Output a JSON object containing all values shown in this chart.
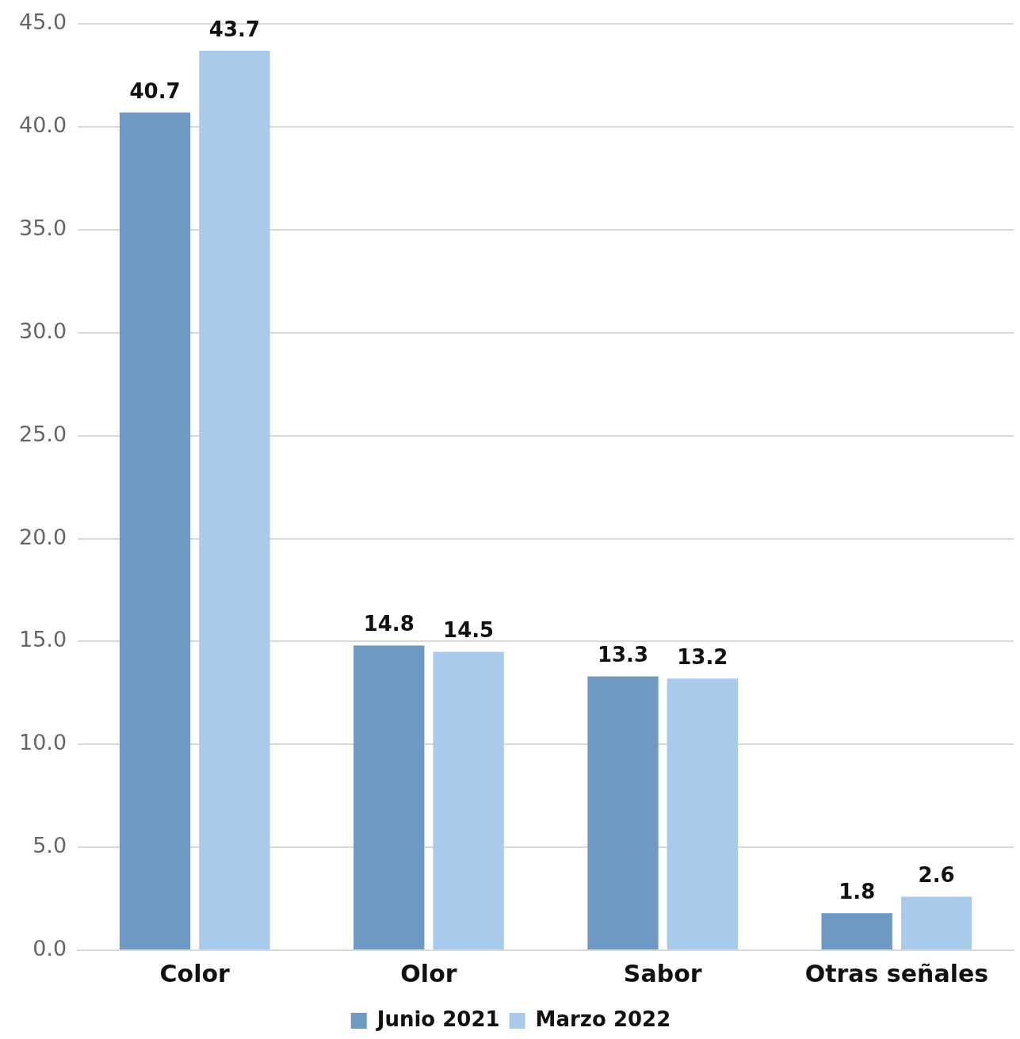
{
  "chart_data": {
    "type": "bar",
    "categories": [
      "Color",
      "Olor",
      "Sabor",
      "Otras señales"
    ],
    "series": [
      {
        "name": "Junio 2021",
        "color": "#6e99c2",
        "values": [
          40.7,
          14.8,
          13.3,
          1.8
        ]
      },
      {
        "name": "Marzo 2022",
        "color": "#a8caeb",
        "values": [
          43.7,
          14.5,
          13.2,
          2.6
        ]
      }
    ],
    "ylim": [
      0,
      45
    ],
    "yticks": [
      {
        "value": 0,
        "label": "0.0"
      },
      {
        "value": 5,
        "label": "5.0"
      },
      {
        "value": 10,
        "label": "10.0"
      },
      {
        "value": 15,
        "label": "15.0"
      },
      {
        "value": 20,
        "label": "20.0"
      },
      {
        "value": 25,
        "label": "25.0"
      },
      {
        "value": 30,
        "label": "30.0"
      },
      {
        "value": 35,
        "label": "35.0"
      },
      {
        "value": 40,
        "label": "40.0"
      },
      {
        "value": 45,
        "label": "45.0"
      }
    ],
    "grid": "y",
    "legend": "bottom",
    "data_labels": true
  }
}
